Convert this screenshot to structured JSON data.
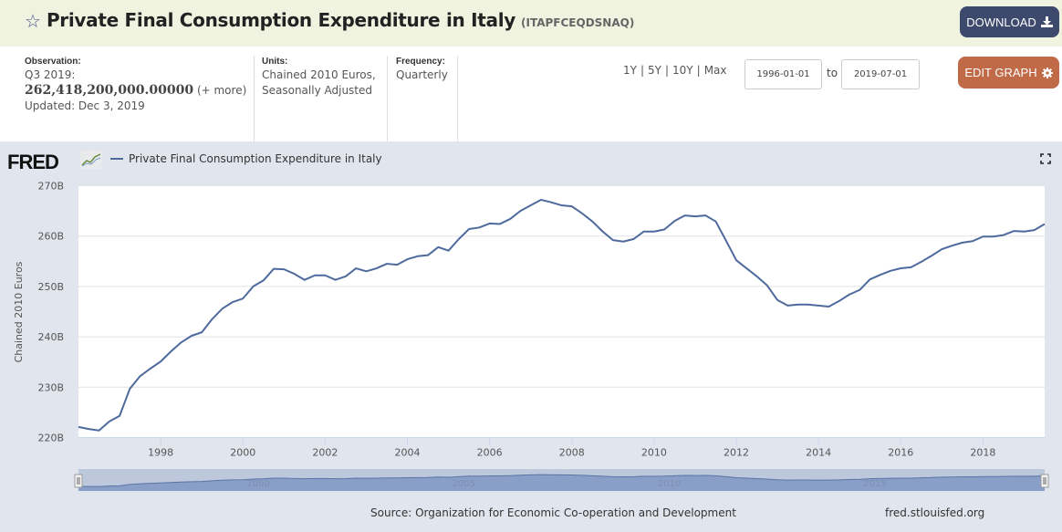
{
  "header": {
    "title": "Private Final Consumption Expenditure in Italy",
    "series_id": "(ITAPFCEQDSNAQ)",
    "download_label": "DOWNLOAD",
    "edit_label": "EDIT GRAPH"
  },
  "meta": {
    "observation_label": "Observation:",
    "observation_period": "Q3 2019:",
    "observation_value": "262,418,200,000.00000",
    "more_label": "(+ more)",
    "updated": "Updated: Dec 3, 2019",
    "units_label": "Units:",
    "units_value": "Chained 2010 Euros, Seasonally Adjusted",
    "frequency_label": "Frequency:",
    "frequency_value": "Quarterly"
  },
  "controls": {
    "ranges": [
      "1Y",
      "5Y",
      "10Y",
      "Max"
    ],
    "separator": "|",
    "start_date": "1996-01-01",
    "to_label": "to",
    "end_date": "2019-07-01"
  },
  "chart_header": {
    "logo": "FRED",
    "legend_label": "Private Final Consumption Expenditure in Italy"
  },
  "footer": {
    "source": "Source: Organization for Economic Co-operation and Development",
    "url": "fred.stlouisfed.org"
  },
  "colors": {
    "line": "#4e6a9d",
    "download_btn": "#3d4a6e",
    "edit_btn": "#c06a47",
    "header_bg": "#f1f3e1"
  },
  "chart_data": {
    "type": "line",
    "title": "Private Final Consumption Expenditure in Italy",
    "xlabel": "",
    "ylabel": "Chained 2010 Euros",
    "ylim": [
      220,
      270
    ],
    "y_unit": "B",
    "yticks": [
      "220B",
      "230B",
      "240B",
      "250B",
      "260B",
      "270B"
    ],
    "xticks": [
      "1998",
      "2000",
      "2002",
      "2004",
      "2006",
      "2008",
      "2010",
      "2012",
      "2014",
      "2016",
      "2018"
    ],
    "xlim": [
      "1996-01-01",
      "2019-07-01"
    ],
    "navigator_labels": [
      "2000",
      "2005",
      "2010",
      "2015"
    ],
    "grid": true,
    "legend": "top-left",
    "series": [
      {
        "name": "Private Final Consumption Expenditure in Italy",
        "start": "1996Q1",
        "frequency": "quarterly",
        "values": [
          222.1,
          221.7,
          221.4,
          223.2,
          224.3,
          229.7,
          232.2,
          233.7,
          235.1,
          237.1,
          238.9,
          240.2,
          240.9,
          243.5,
          245.6,
          246.9,
          247.6,
          250.0,
          251.2,
          253.5,
          253.4,
          252.5,
          251.3,
          252.2,
          252.2,
          251.3,
          252.0,
          253.6,
          253.0,
          253.6,
          254.5,
          254.3,
          255.4,
          256.0,
          256.2,
          257.8,
          257.1,
          259.4,
          261.4,
          261.7,
          262.5,
          262.4,
          263.4,
          265.0,
          266.1,
          267.2,
          266.7,
          266.1,
          265.9,
          264.5,
          262.9,
          260.9,
          259.2,
          258.9,
          259.4,
          260.9,
          260.9,
          261.3,
          263.0,
          264.1,
          263.9,
          264.1,
          262.9,
          259.1,
          255.2,
          253.6,
          252.0,
          250.2,
          247.3,
          246.2,
          246.4,
          246.4,
          246.2,
          246.0,
          247.1,
          248.4,
          249.3,
          251.4,
          252.3,
          253.1,
          253.6,
          253.8,
          254.9,
          256.1,
          257.4,
          258.1,
          258.7,
          259.0,
          259.9,
          259.9,
          260.2,
          261.0,
          260.9,
          261.2,
          262.4
        ]
      }
    ]
  }
}
